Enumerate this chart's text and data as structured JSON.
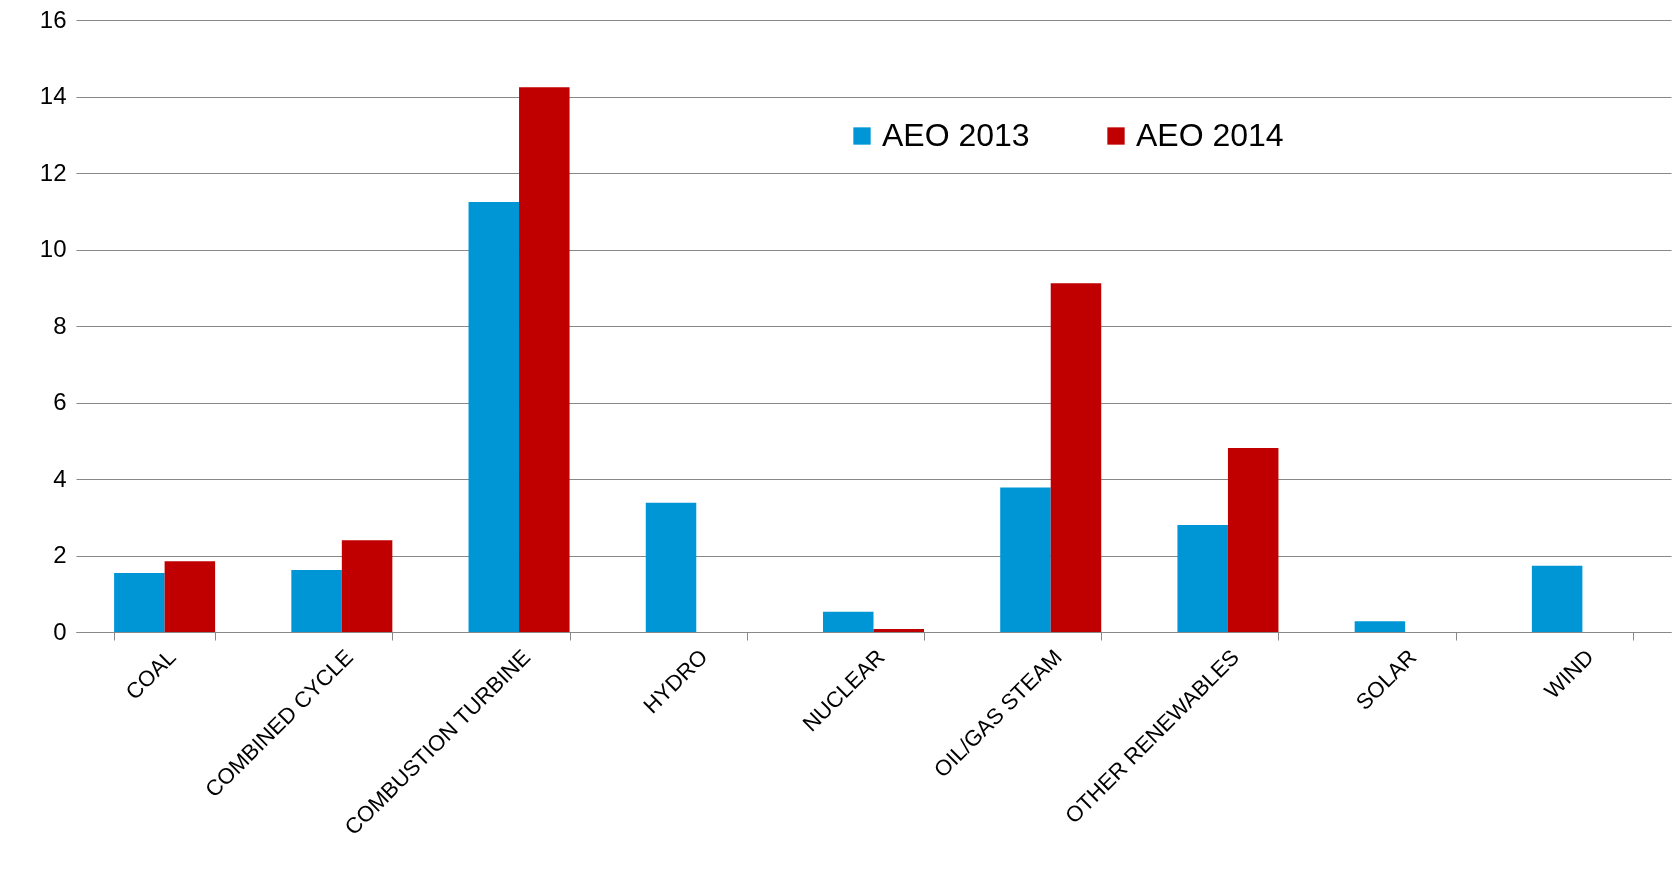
{
  "chart_data": {
    "type": "bar",
    "categories": [
      "COAL",
      "COMBINED CYCLE",
      "COMBUSTION TURBINE",
      "HYDRO",
      "NUCLEAR",
      "OIL/GAS STEAM",
      "OTHER RENEWABLES",
      "SOLAR",
      "WIND"
    ],
    "series": [
      {
        "name": "AEO 2013",
        "color": "#0096d6",
        "values": [
          1.54,
          1.62,
          11.24,
          3.38,
          0.53,
          3.78,
          2.8,
          0.28,
          1.73
        ]
      },
      {
        "name": "AEO 2014",
        "color": "#c00000",
        "values": [
          1.85,
          2.4,
          14.24,
          0,
          0.08,
          9.12,
          4.81,
          0,
          0
        ]
      }
    ],
    "ylim": [
      0,
      16
    ],
    "yticks": [
      0,
      2,
      4,
      6,
      8,
      10,
      12,
      14,
      16
    ],
    "grid": "y",
    "legend": "top right"
  }
}
